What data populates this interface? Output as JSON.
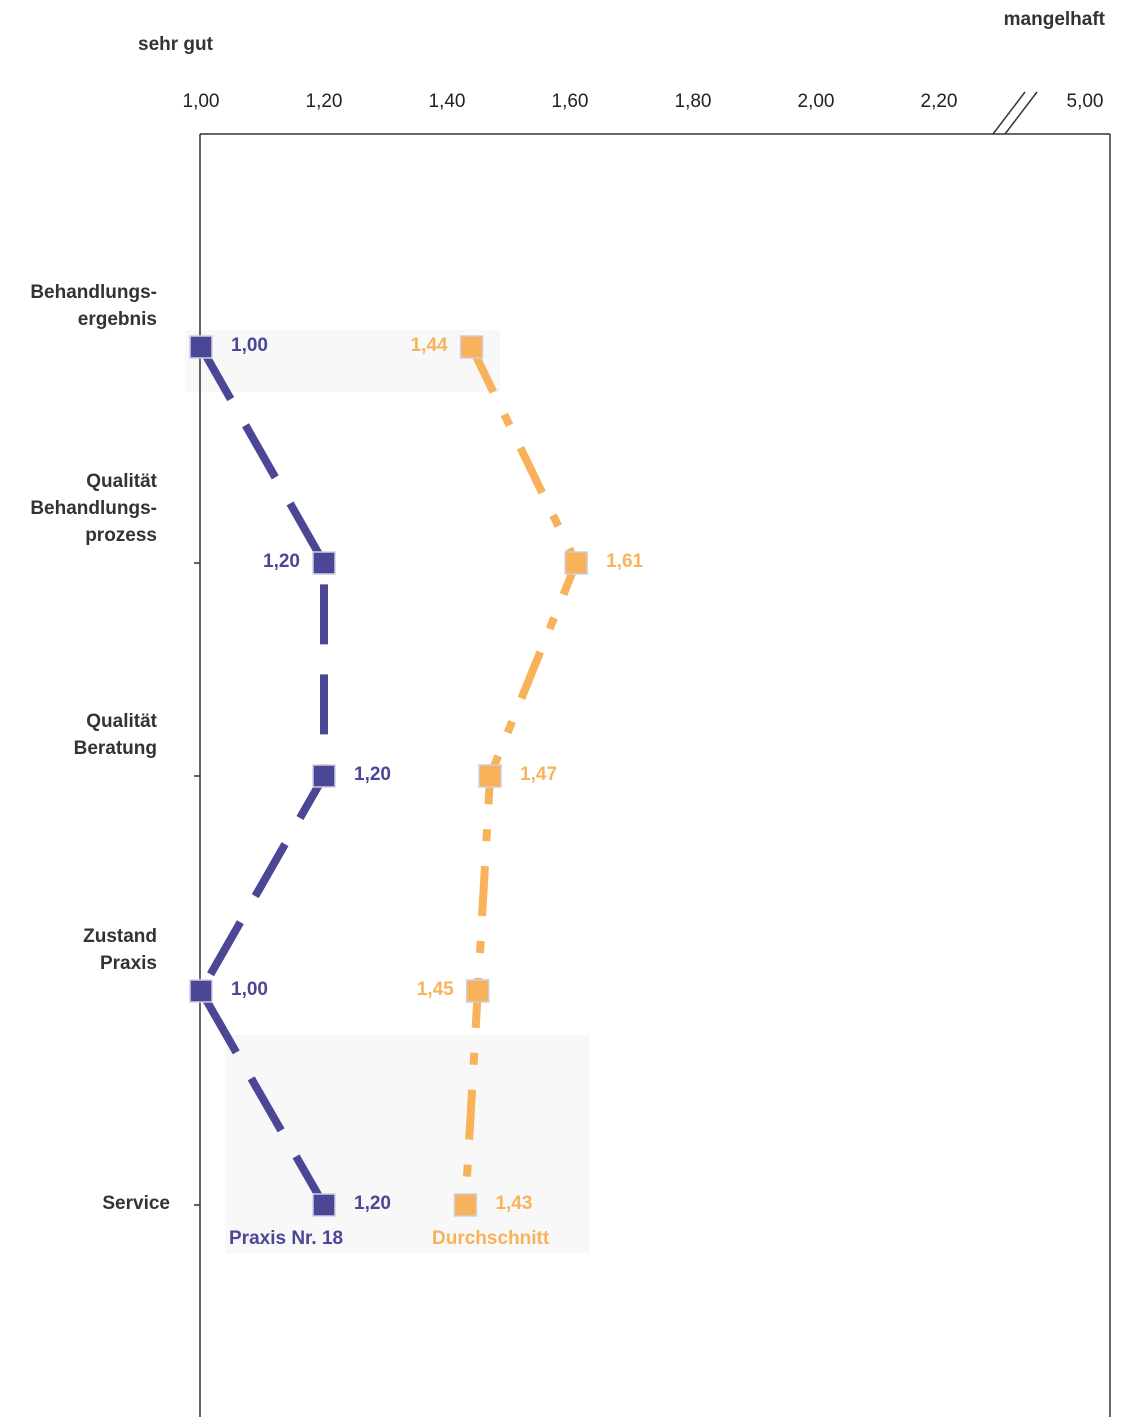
{
  "chart_data": {
    "type": "line",
    "orientation": "horizontal-value-axis",
    "scale_left_label": "sehr gut",
    "scale_right_label": "mangelhaft",
    "x_ticks": [
      "1,00",
      "1,20",
      "1,40",
      "1,60",
      "1,80",
      "2,00",
      "2,20",
      "5,00"
    ],
    "x_tick_values": [
      1.0,
      1.2,
      1.4,
      1.6,
      1.8,
      2.0,
      2.2,
      5.0
    ],
    "axis_break_between": [
      2.2,
      5.0
    ],
    "xlim": [
      1.0,
      5.0
    ],
    "categories": [
      "Behandlungs-\nergebnis",
      "Qualität\nBehandlungs-\nprozess",
      "Qualität\nBeratung",
      "Zustand\nPraxis",
      "Service"
    ],
    "series": [
      {
        "name": "Praxis Nr. 18",
        "color": "#4b4696",
        "values": [
          1.0,
          1.2,
          1.2,
          1.0,
          1.2
        ],
        "value_labels": [
          "1,00",
          "1,20",
          "1,20",
          "1,00",
          "1,20"
        ]
      },
      {
        "name": "Durchschnitt",
        "color": "#f8b35a",
        "values": [
          1.44,
          1.61,
          1.47,
          1.45,
          1.43
        ],
        "value_labels": [
          "1,44",
          "1,61",
          "1,47",
          "1,45",
          "1,43"
        ]
      }
    ],
    "grid": false,
    "legend": "bottom (inline under last category)"
  }
}
